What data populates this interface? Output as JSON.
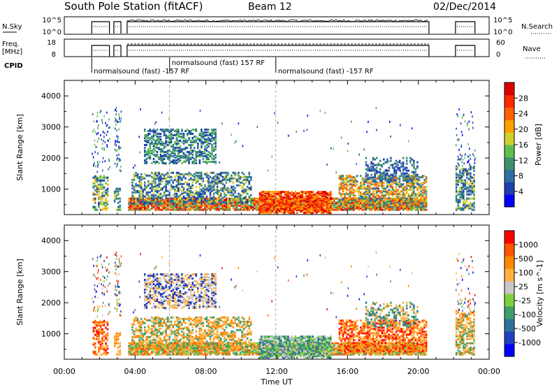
{
  "header": {
    "station": "South Pole Station (fitACF)",
    "beam": "Beam 12",
    "date": "02/Dec/2014"
  },
  "summary": {
    "nsky_label": "N.Sky",
    "nsearch_label": "N.Search",
    "freq_label_line1": "Freq.",
    "freq_label_line2": "[MHz]",
    "nave_label": "Nave",
    "cpid_label": "CPID",
    "nsky_ticks": [
      "10^5",
      "10^0"
    ],
    "nsearch_ticks": [
      "10^5",
      "10^0"
    ],
    "freq_ticks": [
      "18",
      "8"
    ],
    "nave_ticks": [
      "60",
      "0"
    ]
  },
  "cpid": {
    "segments": [
      {
        "start_h": 1.55,
        "text": "normalsound (fast) -157 RF",
        "row": 2
      },
      {
        "start_h": 5.95,
        "text": "normalsound (fast) 157 RF",
        "row": 1
      },
      {
        "start_h": 11.95,
        "text": "normalsound (fast) -157 RF",
        "row": 2
      }
    ]
  },
  "colors": {
    "power_scale": [
      "#0000ff",
      "#1f3fb0",
      "#2f6fa0",
      "#3f8f6f",
      "#5fbf4f",
      "#cfcf2f",
      "#ffa000",
      "#ff6000",
      "#ff2a00",
      "#dd0000"
    ],
    "velocity_scale": [
      "#0000ff",
      "#2040c0",
      "#30709a",
      "#3f9f6a",
      "#7fcf3f",
      "#c8c8c8",
      "#ffb040",
      "#ff8800",
      "#ff5500",
      "#ff0000"
    ]
  },
  "chart_data": [
    {
      "type": "heatmap",
      "title": "",
      "xlabel": "Time UT",
      "ylabel": "Slant Range [km]",
      "xlim": [
        0,
        24
      ],
      "ylim": [
        180,
        4500
      ],
      "x_ticks": [
        "00:00",
        "04:00",
        "08:00",
        "12:00",
        "16:00",
        "20:00",
        "00:00"
      ],
      "y_ticks": [
        "1000",
        "2000",
        "3000",
        "4000"
      ],
      "colorbar": {
        "label": "Power [dB]",
        "ticks": [
          "4",
          "8",
          "12",
          "16",
          "20",
          "24",
          "28"
        ]
      },
      "data_periods_h": [
        [
          1.55,
          2.55
        ],
        [
          2.8,
          3.2
        ],
        [
          3.55,
          20.6
        ],
        [
          22.1,
          23.2
        ]
      ]
    },
    {
      "type": "heatmap",
      "title": "",
      "xlabel": "Time UT",
      "ylabel": "Slant Range [km]",
      "xlim": [
        0,
        24
      ],
      "ylim": [
        180,
        4500
      ],
      "x_ticks": [
        "00:00",
        "04:00",
        "08:00",
        "12:00",
        "16:00",
        "20:00",
        "00:00"
      ],
      "y_ticks": [
        "1000",
        "2000",
        "3000",
        "4000"
      ],
      "colorbar": {
        "label": "Velocity [m s^-1]",
        "ticks": [
          "1000",
          "500",
          "100",
          "25",
          "-25",
          "-100",
          "-500",
          "-1000"
        ]
      },
      "data_periods_h": [
        [
          1.55,
          2.55
        ],
        [
          2.8,
          3.2
        ],
        [
          3.55,
          20.6
        ],
        [
          22.1,
          23.2
        ]
      ]
    }
  ]
}
